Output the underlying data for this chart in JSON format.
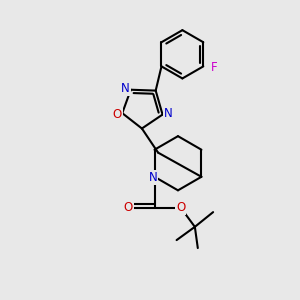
{
  "bg_color": "#e8e8e8",
  "bond_color": "#000000",
  "bond_width": 1.5,
  "atom_colors": {
    "N": "#0000cc",
    "O": "#cc0000",
    "F": "#cc00cc",
    "C": "#000000"
  },
  "font_size": 8.5,
  "figsize": [
    3.0,
    3.0
  ],
  "dpi": 100
}
